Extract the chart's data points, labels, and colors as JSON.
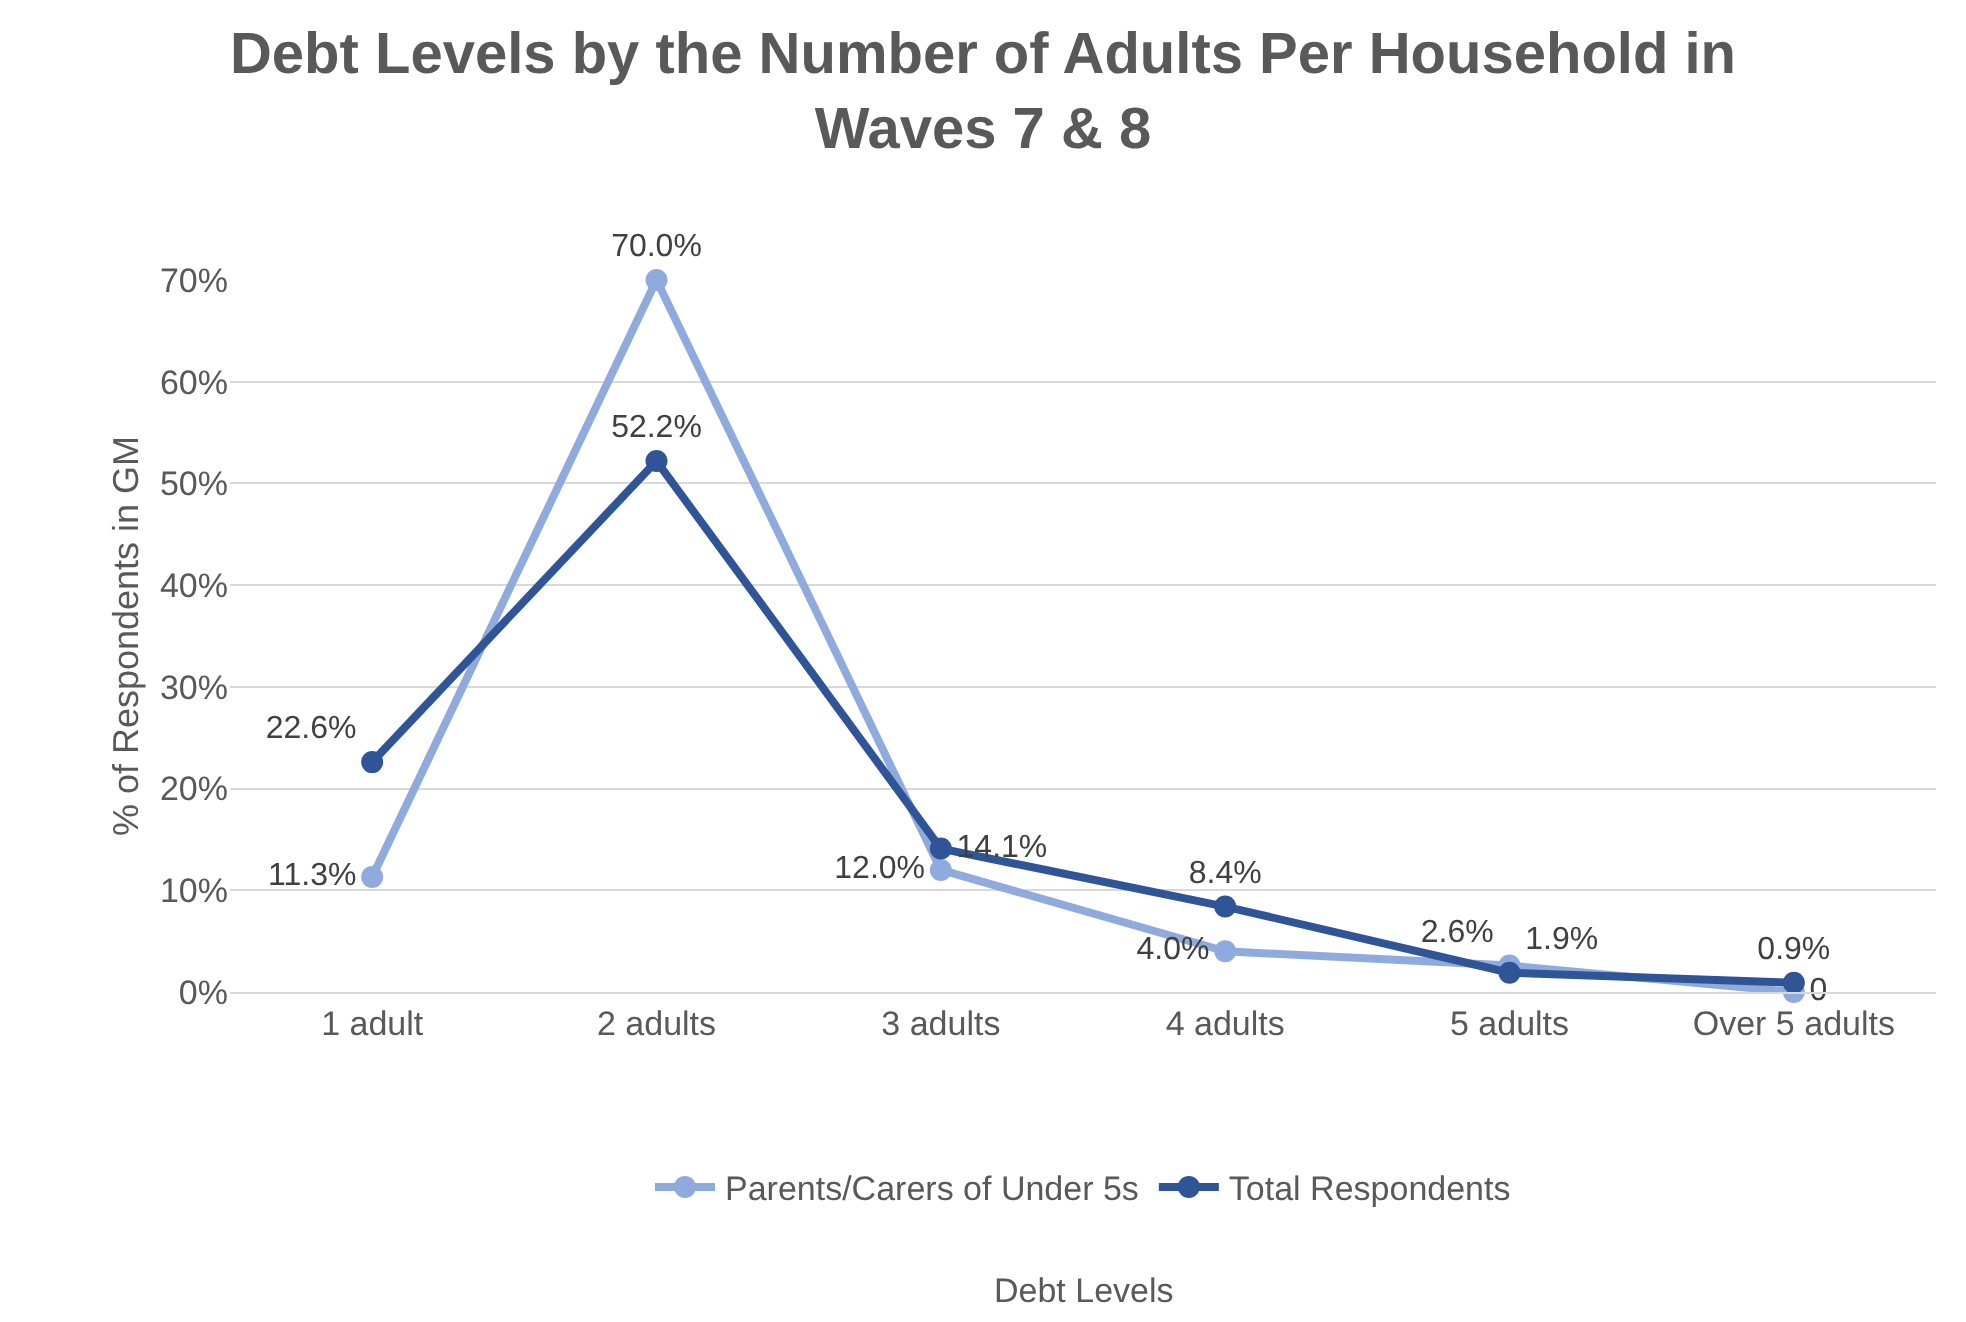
{
  "chart_data": {
    "type": "line",
    "title": "Debt Levels by the Number of Adults Per Household in Waves 7 & 8",
    "annotations": [
      "Debt Levels"
    ],
    "ylabel": "% of Respondents in GM",
    "categories": [
      "1 adult",
      "2 adults",
      "3 adults",
      "4 adults",
      "5 adults",
      "Over 5 adults"
    ],
    "series": [
      {
        "name": "Parents/Carers of Under 5s",
        "color": "#8faadc",
        "values": [
          11.3,
          70.0,
          12.0,
          4.0,
          2.6,
          0
        ],
        "value_labels": [
          "11.3%",
          "70.0%",
          "12.0%",
          "4.0%",
          "2.6%",
          "0"
        ]
      },
      {
        "name": "Total Respondents",
        "color": "#2f5597",
        "values": [
          22.6,
          52.2,
          14.1,
          8.4,
          1.9,
          0.9
        ],
        "value_labels": [
          "22.6%",
          "52.2%",
          "14.1%",
          "8.4%",
          "1.9%",
          "0.9%"
        ]
      }
    ],
    "ylim": [
      0,
      70
    ],
    "yticks": [
      {
        "value": 0,
        "label": "0%"
      },
      {
        "value": 10,
        "label": "10%"
      },
      {
        "value": 20,
        "label": "20%"
      },
      {
        "value": 30,
        "label": "30%"
      },
      {
        "value": 40,
        "label": "40%"
      },
      {
        "value": 50,
        "label": "50%"
      },
      {
        "value": 60,
        "label": "60%"
      },
      {
        "value": 70,
        "label": "70%"
      }
    ],
    "grid": "y",
    "legend": "bottom",
    "marker": "circle",
    "line_style": "solid"
  }
}
